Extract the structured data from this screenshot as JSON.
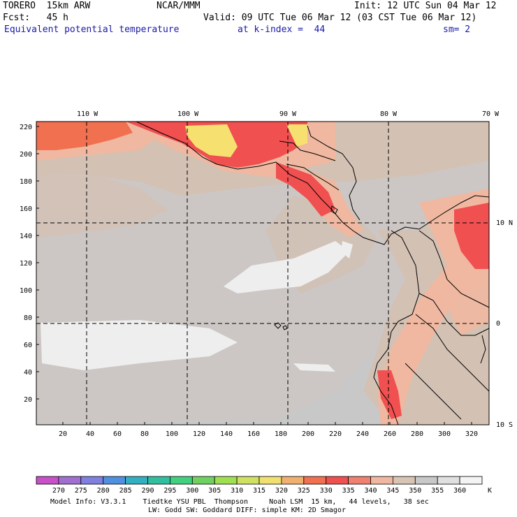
{
  "header": {
    "model": "TORERO  15km ARW",
    "center": "NCAR/MMM",
    "init": "Init: 12 UTC Sun 04 Mar 12",
    "fcst_label": "Fcst:   45 h",
    "valid": "Valid: 09 UTC Tue 06 Mar 12 (03 CST Tue 06 Mar 12)",
    "field": "Equivalent potential temperature",
    "level": "at k-index =  44",
    "smooth": "sm= 2"
  },
  "map": {
    "lon_labels": [
      "110 W",
      "100 W",
      "90 W",
      "80 W",
      "70 W"
    ],
    "lat_labels": [
      "10 N",
      "0",
      "10 S"
    ],
    "y_ticks": [
      "220",
      "200",
      "180",
      "160",
      "140",
      "120",
      "100",
      "80",
      "60",
      "40",
      "20"
    ],
    "x_ticks": [
      "20",
      "40",
      "60",
      "80",
      "100",
      "120",
      "140",
      "160",
      "180",
      "200",
      "220",
      "240",
      "260",
      "280",
      "300",
      "320"
    ],
    "colors": {
      "background_field": "#c8c8c8",
      "warm_field": "#d3c1b4",
      "salmon": "#f0c8b0",
      "red": "#f05050",
      "orange": "#f07050",
      "yellow": "#f5e070",
      "white": "#eeeeee"
    }
  },
  "colorbar": {
    "labels": [
      "270",
      "275",
      "280",
      "285",
      "290",
      "295",
      "300",
      "305",
      "310",
      "315",
      "320",
      "325",
      "330",
      "335",
      "340",
      "345",
      "350",
      "355",
      "360"
    ],
    "unit": "K",
    "colors": [
      "#c850c8",
      "#a070d0",
      "#8080e0",
      "#5090e0",
      "#30b0c0",
      "#30c0a0",
      "#40d080",
      "#70d060",
      "#a0e050",
      "#d0e060",
      "#f0e070",
      "#f0b070",
      "#f07050",
      "#f05050",
      "#f08070",
      "#f0b8a0",
      "#d8c4b4",
      "#c8c8c8",
      "#e0e0e0",
      "#f4f4f4"
    ]
  },
  "footer": {
    "line1": "Model Info: V3.3.1    Tiedtke YSU PBL  Thompson     Noah LSM  15 km,   44 levels,   38 sec",
    "line2": "LW: Godd SW: Goddard DIFF: simple KM: 2D Smagor"
  }
}
